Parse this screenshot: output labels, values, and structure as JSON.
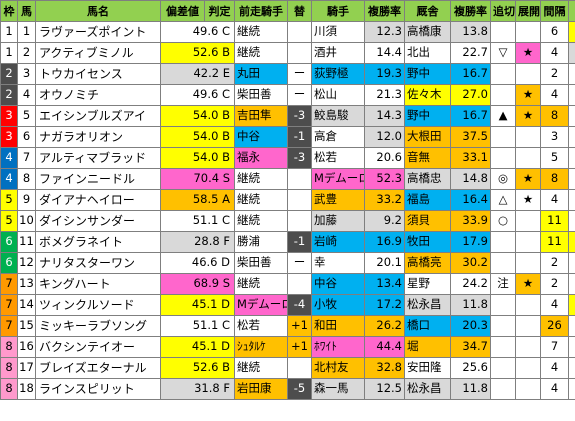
{
  "headers": [
    "枠",
    "馬",
    "馬名",
    "偏差値",
    "判定",
    "前走騎手",
    "替",
    "騎手",
    "複勝率",
    "厩舎",
    "複勝率",
    "追切",
    "展開",
    "間隔",
    "↑"
  ],
  "colors": {
    "header_bg": "#92d050",
    "yellow": "#ffff00",
    "blue": "#00b0f0",
    "pink": "#ff66cc",
    "orange": "#ffc000",
    "gray": "#d9d9d9",
    "dark": "#4d4d4d",
    "green": "#00b050",
    "waku_colors": [
      "#ffffff",
      "#000000",
      "#ff0000",
      "#0070c0",
      "#ffff00",
      "#00b050",
      "#ff9900",
      "#ff99cc"
    ]
  },
  "rows": [
    {
      "waku": "1",
      "wakuColor": "#ffffff",
      "wakuText": "#000000",
      "uma": "1",
      "name": "ラヴァーズポイント",
      "nameBg": "#ffffff",
      "dev": "49.6",
      "hantei": "C",
      "devBg": "#ffffff",
      "prev": "継続",
      "prevBg": "#ffffff",
      "change": "",
      "changeBg": "#ffffff",
      "jockey": "川須",
      "jockeyBg": "#ffffff",
      "rate": "12.3",
      "rateBg": "#d9d9d9",
      "stable": "高橋康",
      "stableBg": "#d9d9d9",
      "srate": "13.8",
      "srateBg": "#d9d9d9",
      "chase": "",
      "chaseBg": "#ffffff",
      "tenkai": "",
      "tenkaiBg": "#ffffff",
      "interval": "6",
      "intervalBg": "#ffffff",
      "up": "9",
      "upBg": "#ffff00"
    },
    {
      "waku": "1",
      "wakuColor": "#ffffff",
      "wakuText": "#000000",
      "uma": "2",
      "name": "アクティブミノル",
      "nameBg": "#ffffff",
      "dev": "52.6",
      "hantei": "B",
      "devBg": "#ffff00",
      "prev": "継続",
      "prevBg": "#ffffff",
      "change": "",
      "changeBg": "#ffffff",
      "jockey": "酒井",
      "jockeyBg": "#ffffff",
      "rate": "14.4",
      "rateBg": "#ffffff",
      "stable": "北出",
      "stableBg": "#ffffff",
      "srate": "22.7",
      "srateBg": "#ffffff",
      "chase": "▽",
      "chaseBg": "#ffffff",
      "tenkai": "★",
      "tenkaiBg": "#ff66cc",
      "interval": "4",
      "intervalBg": "#ffffff",
      "up": "18",
      "upBg": "#d9d9d9"
    },
    {
      "waku": "2",
      "wakuColor": "#4d4d4d",
      "wakuText": "#ffffff",
      "uma": "3",
      "name": "トウカイセンス",
      "nameBg": "#ffffff",
      "dev": "42.2",
      "hantei": "E",
      "devBg": "#d9d9d9",
      "prev": "丸田",
      "prevBg": "#00b0f0",
      "change": "ー",
      "changeBg": "#ffffff",
      "jockey": "荻野極",
      "jockeyBg": "#00b0f0",
      "rate": "19.3",
      "rateBg": "#00b0f0",
      "stable": "野中",
      "stableBg": "#00b0f0",
      "srate": "16.7",
      "srateBg": "#00b0f0",
      "chase": "",
      "chaseBg": "#ffffff",
      "tenkai": "",
      "tenkaiBg": "#ffffff",
      "interval": "2",
      "intervalBg": "#ffffff",
      "up": "1",
      "upBg": "#ffffff"
    },
    {
      "waku": "2",
      "wakuColor": "#4d4d4d",
      "wakuText": "#ffffff",
      "uma": "4",
      "name": "オウノミチ",
      "nameBg": "#ffffff",
      "dev": "49.6",
      "hantei": "C",
      "devBg": "#ffffff",
      "prev": "柴田善",
      "prevBg": "#ffffff",
      "change": "ー",
      "changeBg": "#ffffff",
      "jockey": "松山",
      "jockeyBg": "#ffffff",
      "rate": "21.3",
      "rateBg": "#ffffff",
      "stable": "佐々木",
      "stableBg": "#ffff00",
      "srate": "27.0",
      "srateBg": "#ffff00",
      "chase": "",
      "chaseBg": "#ffffff",
      "tenkai": "★",
      "tenkaiBg": "#ffc000",
      "interval": "4",
      "intervalBg": "#ffffff",
      "up": "4",
      "upBg": "#ffffff"
    },
    {
      "waku": "3",
      "wakuColor": "#ff0000",
      "wakuText": "#ffffff",
      "uma": "5",
      "name": "エイシンブルズアイ",
      "nameBg": "#ffffff",
      "dev": "54.0",
      "hantei": "B",
      "devBg": "#ffff00",
      "prev": "吉田隼",
      "prevBg": "#ffc000",
      "change": "-3",
      "changeBg": "#4d4d4d",
      "jockey": "鮫島駿",
      "jockeyBg": "#d9d9d9",
      "rate": "14.3",
      "rateBg": "#d9d9d9",
      "stable": "野中",
      "stableBg": "#00b0f0",
      "srate": "16.7",
      "srateBg": "#00b0f0",
      "chase": "▲",
      "chaseBg": "#ffffff",
      "tenkai": "★",
      "tenkaiBg": "#ffc000",
      "interval": "8",
      "intervalBg": "#ffc000",
      "up": "14",
      "upBg": "#ffffff"
    },
    {
      "waku": "3",
      "wakuColor": "#ff0000",
      "wakuText": "#ffffff",
      "uma": "6",
      "name": "ナガラオリオン",
      "nameBg": "#ffffff",
      "dev": "54.0",
      "hantei": "B",
      "devBg": "#ffff00",
      "prev": "中谷",
      "prevBg": "#00b0f0",
      "change": "-1",
      "changeBg": "#4d4d4d",
      "jockey": "高倉",
      "jockeyBg": "#ffffff",
      "rate": "12.0",
      "rateBg": "#d9d9d9",
      "stable": "大根田",
      "stableBg": "#ffc000",
      "srate": "37.5",
      "srateBg": "#ffc000",
      "chase": "",
      "chaseBg": "#ffffff",
      "tenkai": "",
      "tenkaiBg": "#ffffff",
      "interval": "3",
      "intervalBg": "#ffffff",
      "up": "8",
      "upBg": "#ffffff"
    },
    {
      "waku": "4",
      "wakuColor": "#0070c0",
      "wakuText": "#ffffff",
      "uma": "7",
      "name": "アルティマブラッド",
      "nameBg": "#ffffff",
      "dev": "54.0",
      "hantei": "B",
      "devBg": "#ffff00",
      "prev": "福永",
      "prevBg": "#ff66cc",
      "change": "-3",
      "changeBg": "#4d4d4d",
      "jockey": "松若",
      "jockeyBg": "#ffffff",
      "rate": "20.6",
      "rateBg": "#ffffff",
      "stable": "音無",
      "stableBg": "#ffc000",
      "srate": "33.1",
      "srateBg": "#ffc000",
      "chase": "",
      "chaseBg": "#ffffff",
      "tenkai": "",
      "tenkaiBg": "#ffffff",
      "interval": "5",
      "intervalBg": "#ffffff",
      "up": "5",
      "upBg": "#ffffff"
    },
    {
      "waku": "4",
      "wakuColor": "#0070c0",
      "wakuText": "#ffffff",
      "uma": "8",
      "name": "ファインニードル",
      "nameBg": "#ffffff",
      "dev": "70.4",
      "hantei": "S",
      "devBg": "#ff66cc",
      "prev": "継続",
      "prevBg": "#ffffff",
      "change": "",
      "changeBg": "#ffffff",
      "jockey": "Mデムーロ",
      "jockeyBg": "#ff66cc",
      "rate": "52.3",
      "rateBg": "#ff66cc",
      "stable": "高橋忠",
      "stableBg": "#d9d9d9",
      "srate": "14.8",
      "srateBg": "#d9d9d9",
      "chase": "◎",
      "chaseBg": "#ffffff",
      "tenkai": "★",
      "tenkaiBg": "#ffc000",
      "interval": "8",
      "intervalBg": "#ffc000",
      "up": "4",
      "upBg": "#ffffff"
    },
    {
      "waku": "5",
      "wakuColor": "#ffff00",
      "wakuText": "#000000",
      "uma": "9",
      "name": "ダイアナヘイロー",
      "nameBg": "#ffffff",
      "dev": "58.5",
      "hantei": "A",
      "devBg": "#ffc000",
      "prev": "継続",
      "prevBg": "#ffffff",
      "change": "",
      "changeBg": "#ffffff",
      "jockey": "武豊",
      "jockeyBg": "#ffc000",
      "rate": "33.2",
      "rateBg": "#ffc000",
      "stable": "福島",
      "stableBg": "#00b0f0",
      "srate": "16.4",
      "srateBg": "#00b0f0",
      "chase": "△",
      "chaseBg": "#ffffff",
      "tenkai": "★",
      "tenkaiBg": "#ffffff",
      "interval": "4",
      "intervalBg": "#ffffff",
      "up": "5",
      "upBg": "#ffffff"
    },
    {
      "waku": "5",
      "wakuColor": "#ffff00",
      "wakuText": "#000000",
      "uma": "10",
      "name": "ダイシンサンダー",
      "nameBg": "#ffffff",
      "dev": "51.1",
      "hantei": "C",
      "devBg": "#ffffff",
      "prev": "継続",
      "prevBg": "#ffffff",
      "change": "",
      "changeBg": "#ffffff",
      "jockey": "加藤",
      "jockeyBg": "#d9d9d9",
      "rate": "9.2",
      "rateBg": "#d9d9d9",
      "stable": "須貝",
      "stableBg": "#ffc000",
      "srate": "33.9",
      "srateBg": "#ffc000",
      "chase": "○",
      "chaseBg": "#ffffff",
      "tenkai": "",
      "tenkaiBg": "#ffffff",
      "interval": "11",
      "intervalBg": "#ffff00",
      "up": "3",
      "upBg": "#ffffff"
    },
    {
      "waku": "6",
      "wakuColor": "#00b050",
      "wakuText": "#ffffff",
      "uma": "11",
      "name": "ボメグラネイト",
      "nameBg": "#ffffff",
      "dev": "28.8",
      "hantei": "F",
      "devBg": "#d9d9d9",
      "prev": "勝浦",
      "prevBg": "#ffffff",
      "change": "-1",
      "changeBg": "#4d4d4d",
      "jockey": "岩崎",
      "jockeyBg": "#00b0f0",
      "rate": "16.9",
      "rateBg": "#00b0f0",
      "stable": "牧田",
      "stableBg": "#00b0f0",
      "srate": "17.9",
      "srateBg": "#00b0f0",
      "chase": "",
      "chaseBg": "#ffffff",
      "tenkai": "",
      "tenkaiBg": "#ffffff",
      "interval": "11",
      "intervalBg": "#ffff00",
      "up": "11",
      "upBg": "#ffff00"
    },
    {
      "waku": "6",
      "wakuColor": "#00b050",
      "wakuText": "#ffffff",
      "uma": "12",
      "name": "ナリタスターワン",
      "nameBg": "#ffffff",
      "dev": "46.6",
      "hantei": "D",
      "devBg": "#ffffff",
      "prev": "柴田善",
      "prevBg": "#ffffff",
      "change": "ー",
      "changeBg": "#ffffff",
      "jockey": "幸",
      "jockeyBg": "#ffffff",
      "rate": "20.1",
      "rateBg": "#ffffff",
      "stable": "高橋亮",
      "stableBg": "#ffc000",
      "srate": "30.2",
      "srateBg": "#ffc000",
      "chase": "",
      "chaseBg": "#ffffff",
      "tenkai": "",
      "tenkaiBg": "#ffffff",
      "interval": "2",
      "intervalBg": "#ffffff",
      "up": "2",
      "upBg": "#ffffff"
    },
    {
      "waku": "7",
      "wakuColor": "#ff9900",
      "wakuText": "#000000",
      "uma": "13",
      "name": "キングハート",
      "nameBg": "#ffffff",
      "dev": "68.9",
      "hantei": "S",
      "devBg": "#ff66cc",
      "prev": "継続",
      "prevBg": "#ffffff",
      "change": "",
      "changeBg": "#ffffff",
      "jockey": "中谷",
      "jockeyBg": "#00b0f0",
      "rate": "13.4",
      "rateBg": "#00b0f0",
      "stable": "星野",
      "stableBg": "#ffffff",
      "srate": "24.2",
      "srateBg": "#ffffff",
      "chase": "注",
      "chaseBg": "#ffffff",
      "tenkai": "★",
      "tenkaiBg": "#ffc000",
      "interval": "2",
      "intervalBg": "#ffffff",
      "up": "8",
      "upBg": "#ffffff"
    },
    {
      "waku": "7",
      "wakuColor": "#ff9900",
      "wakuText": "#000000",
      "uma": "14",
      "name": "ツィンクルソード",
      "nameBg": "#ffffff",
      "dev": "45.1",
      "hantei": "D",
      "devBg": "#ffff00",
      "prev": "Mデムーロ",
      "prevBg": "#ff66cc",
      "change": "-4",
      "changeBg": "#4d4d4d",
      "jockey": "小牧",
      "jockeyBg": "#00b0f0",
      "rate": "17.2",
      "rateBg": "#00b0f0",
      "stable": "松永昌",
      "stableBg": "#d9d9d9",
      "srate": "11.8",
      "srateBg": "#d9d9d9",
      "chase": "",
      "chaseBg": "#ffffff",
      "tenkai": "",
      "tenkaiBg": "#ffffff",
      "interval": "4",
      "intervalBg": "#ffffff",
      "up": "11",
      "upBg": "#ffff00"
    },
    {
      "waku": "7",
      "wakuColor": "#ff9900",
      "wakuText": "#000000",
      "uma": "15",
      "name": "ミッキーラブソング",
      "nameBg": "#ffffff",
      "dev": "51.1",
      "hantei": "C",
      "devBg": "#ffffff",
      "prev": "松若",
      "prevBg": "#ffffff",
      "change": "+1",
      "changeBg": "#ffc000",
      "jockey": "和田",
      "jockeyBg": "#ffc000",
      "rate": "26.2",
      "rateBg": "#ffc000",
      "stable": "橋口",
      "stableBg": "#00b0f0",
      "srate": "20.3",
      "srateBg": "#00b0f0",
      "chase": "",
      "chaseBg": "#ffffff",
      "tenkai": "",
      "tenkaiBg": "#ffffff",
      "interval": "26",
      "intervalBg": "#ffc000",
      "up": "3",
      "upBg": "#ffffff"
    },
    {
      "waku": "8",
      "wakuColor": "#ff99cc",
      "wakuText": "#000000",
      "uma": "16",
      "name": "バクシンテイオー",
      "nameBg": "#ffffff",
      "dev": "45.1",
      "hantei": "D",
      "devBg": "#ffff00",
      "prev": "ｼｭﾀﾙｹ",
      "prevBg": "#ffc000",
      "change": "+1",
      "changeBg": "#ffc000",
      "jockey": "ﾎﾜｲﾄ",
      "jockeyBg": "#ff66cc",
      "rate": "44.4",
      "rateBg": "#ff66cc",
      "stable": "堀",
      "stableBg": "#ffc000",
      "srate": "34.7",
      "srateBg": "#ffc000",
      "chase": "",
      "chaseBg": "#ffffff",
      "tenkai": "",
      "tenkaiBg": "#ffffff",
      "interval": "7",
      "intervalBg": "#ffffff",
      "up": "21",
      "upBg": "#ffffff"
    },
    {
      "waku": "8",
      "wakuColor": "#ff99cc",
      "wakuText": "#000000",
      "uma": "17",
      "name": "ブレイズエターナル",
      "nameBg": "#ffffff",
      "dev": "52.6",
      "hantei": "B",
      "devBg": "#ffff00",
      "prev": "継続",
      "prevBg": "#ffffff",
      "change": "",
      "changeBg": "#ffffff",
      "jockey": "北村友",
      "jockeyBg": "#ffc000",
      "rate": "32.8",
      "rateBg": "#ffc000",
      "stable": "安田隆",
      "stableBg": "#ffffff",
      "srate": "25.6",
      "srateBg": "#ffffff",
      "chase": "",
      "chaseBg": "#ffffff",
      "tenkai": "",
      "tenkaiBg": "#ffffff",
      "interval": "4",
      "intervalBg": "#ffffff",
      "up": "8",
      "upBg": "#ffffff"
    },
    {
      "waku": "8",
      "wakuColor": "#ff99cc",
      "wakuText": "#000000",
      "uma": "18",
      "name": "ラインスピリット",
      "nameBg": "#ffffff",
      "dev": "31.8",
      "hantei": "F",
      "devBg": "#d9d9d9",
      "prev": "岩田康",
      "prevBg": "#ffc000",
      "change": "-5",
      "changeBg": "#4d4d4d",
      "jockey": "森一馬",
      "jockeyBg": "#d9d9d9",
      "rate": "12.5",
      "rateBg": "#d9d9d9",
      "stable": "松永昌",
      "stableBg": "#d9d9d9",
      "srate": "11.8",
      "srateBg": "#d9d9d9",
      "chase": "",
      "chaseBg": "#ffffff",
      "tenkai": "",
      "tenkaiBg": "#ffffff",
      "interval": "4",
      "intervalBg": "#ffffff",
      "up": "2",
      "upBg": "#ffffff"
    }
  ]
}
